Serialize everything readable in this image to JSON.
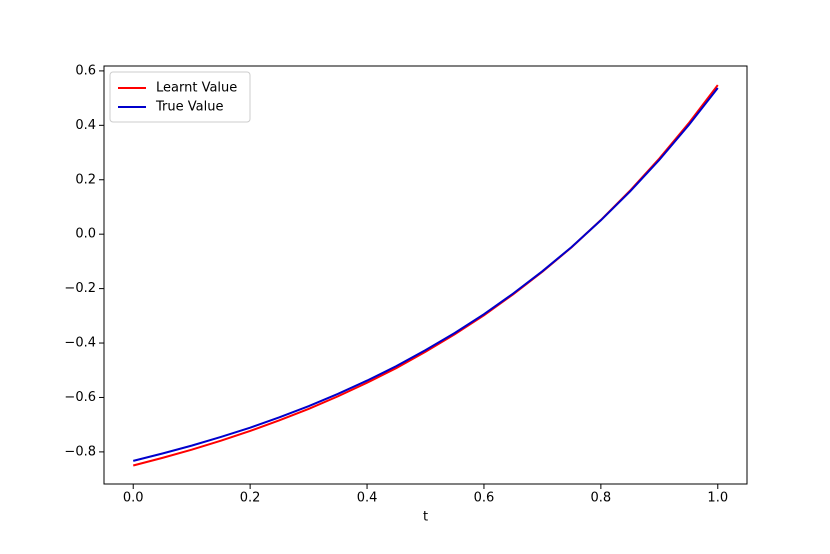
{
  "chart_data": {
    "type": "line",
    "xlabel": "t",
    "x": [
      0,
      0.05,
      0.1,
      0.15,
      0.2,
      0.25,
      0.3,
      0.35,
      0.4,
      0.45,
      0.5,
      0.55,
      0.6,
      0.65,
      0.7,
      0.75,
      0.8,
      0.85,
      0.9,
      0.95,
      1
    ],
    "series": [
      {
        "name": "Learnt Value",
        "color": "#ff0000",
        "values": [
          -0.85,
          -0.822,
          -0.792,
          -0.759,
          -0.723,
          -0.684,
          -0.642,
          -0.596,
          -0.546,
          -0.492,
          -0.432,
          -0.368,
          -0.298,
          -0.221,
          -0.138,
          -0.048,
          0.052,
          0.16,
          0.278,
          0.407,
          0.548
        ]
      },
      {
        "name": "True Value",
        "color": "#0000cc",
        "values": [
          -0.833,
          -0.806,
          -0.777,
          -0.745,
          -0.711,
          -0.673,
          -0.632,
          -0.587,
          -0.538,
          -0.485,
          -0.426,
          -0.363,
          -0.294,
          -0.218,
          -0.136,
          -0.047,
          0.051,
          0.157,
          0.273,
          0.4,
          0.537
        ]
      }
    ],
    "xlim": [
      -0.05,
      1.05
    ],
    "ylim": [
      -0.918,
      0.618
    ],
    "xticks": [
      {
        "value": 0,
        "label": "0.0"
      },
      0.2,
      0.4,
      0.6,
      0.8,
      {
        "value": 1,
        "label": "1.0"
      }
    ],
    "yticks": [
      {
        "value": -0.8,
        "label": "−0.8"
      },
      {
        "value": -0.6,
        "label": "−0.6"
      },
      {
        "value": -0.4,
        "label": "−0.4"
      },
      {
        "value": -0.2,
        "label": "−0.2"
      },
      {
        "value": 0,
        "label": "0.0"
      },
      0.2,
      0.4,
      0.6
    ],
    "legend": "upper left"
  }
}
